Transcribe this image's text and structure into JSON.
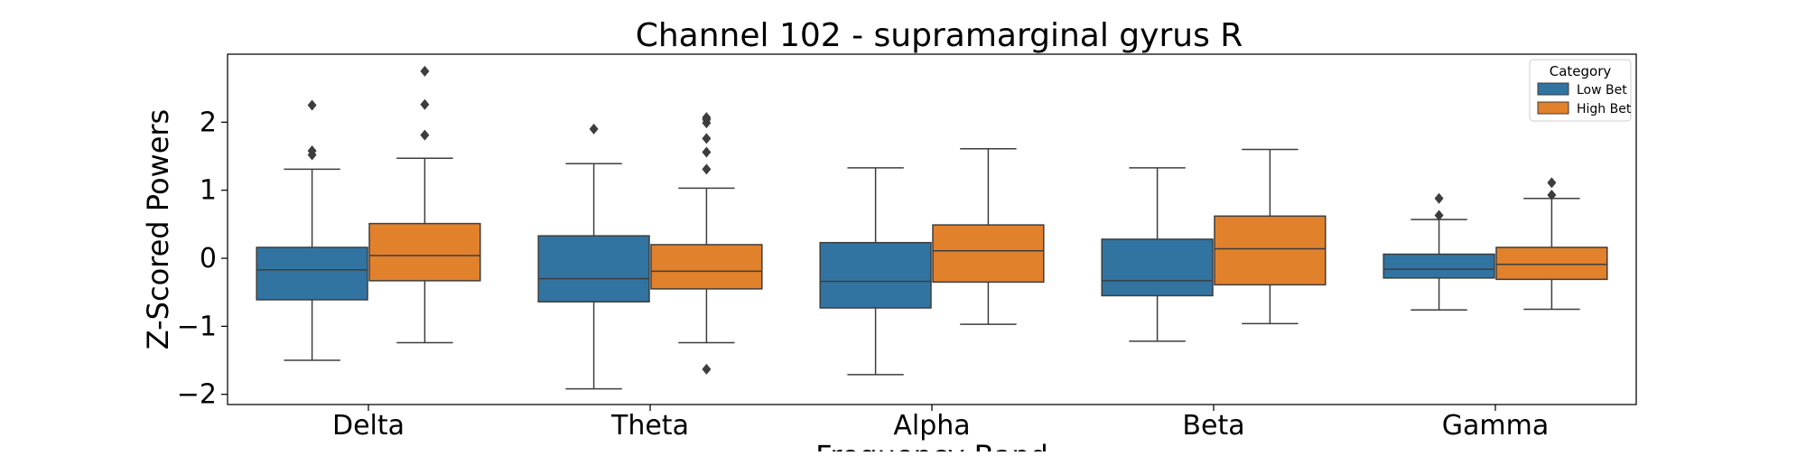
{
  "chart_data": {
    "type": "box",
    "title": "Channel 102 - supramarginal gyrus R",
    "xlabel": "Frequency Band",
    "ylabel": "Z-Scored Powers",
    "ylim": [
      -2.15,
      3.0
    ],
    "yticks": [
      -2,
      -1,
      0,
      1,
      2
    ],
    "ytick_labels": [
      "−2",
      "−1",
      "0",
      "1",
      "2"
    ],
    "categories": [
      "Delta",
      "Theta",
      "Alpha",
      "Beta",
      "Gamma"
    ],
    "legend": {
      "title": "Category",
      "position": "top-right"
    },
    "series": [
      {
        "name": "Low Bet",
        "color": "#3274a1",
        "boxes": [
          {
            "whislo": -1.5,
            "q1": -0.61,
            "med": -0.17,
            "q3": 0.16,
            "whishi": 1.31,
            "fliers": [
              1.52,
              1.58,
              2.25
            ]
          },
          {
            "whislo": -1.92,
            "q1": -0.64,
            "med": -0.3,
            "q3": 0.33,
            "whishi": 1.39,
            "fliers": [
              1.9
            ]
          },
          {
            "whislo": -1.71,
            "q1": -0.73,
            "med": -0.34,
            "q3": 0.23,
            "whishi": 1.33,
            "fliers": []
          },
          {
            "whislo": -1.22,
            "q1": -0.55,
            "med": -0.33,
            "q3": 0.28,
            "whishi": 1.33,
            "fliers": []
          },
          {
            "whislo": -0.76,
            "q1": -0.29,
            "med": -0.16,
            "q3": 0.06,
            "whishi": 0.57,
            "fliers": [
              0.63,
              0.88
            ]
          }
        ]
      },
      {
        "name": "High Bet",
        "color": "#e1812c",
        "boxes": [
          {
            "whislo": -1.24,
            "q1": -0.33,
            "med": 0.04,
            "q3": 0.51,
            "whishi": 1.47,
            "fliers": [
              1.81,
              2.26,
              2.75
            ]
          },
          {
            "whislo": -1.24,
            "q1": -0.45,
            "med": -0.19,
            "q3": 0.2,
            "whishi": 1.03,
            "fliers": [
              1.31,
              1.56,
              1.76,
              1.99,
              2.04,
              2.07,
              -1.63
            ]
          },
          {
            "whislo": -0.97,
            "q1": -0.35,
            "med": 0.11,
            "q3": 0.49,
            "whishi": 1.61,
            "fliers": []
          },
          {
            "whislo": -0.96,
            "q1": -0.39,
            "med": 0.14,
            "q3": 0.62,
            "whishi": 1.6,
            "fliers": []
          },
          {
            "whislo": -0.75,
            "q1": -0.31,
            "med": -0.09,
            "q3": 0.16,
            "whishi": 0.88,
            "fliers": [
              0.93,
              1.11
            ]
          }
        ]
      }
    ]
  }
}
